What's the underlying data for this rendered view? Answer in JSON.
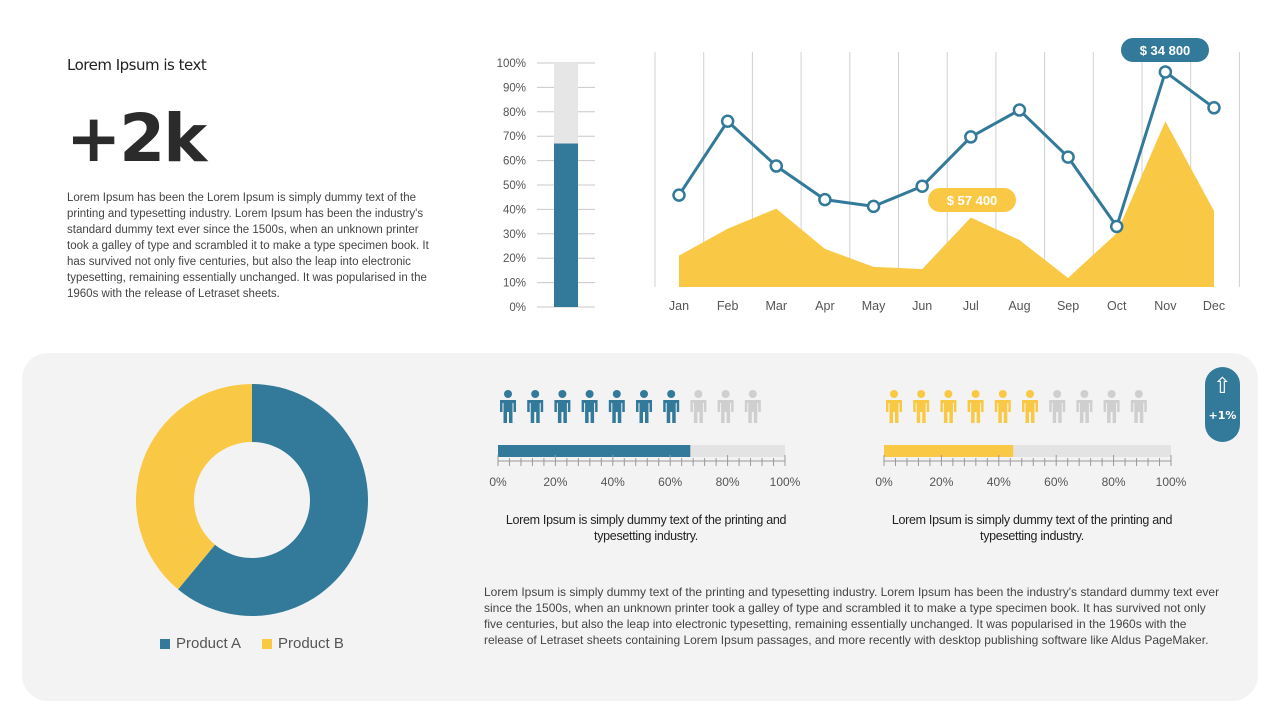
{
  "colors": {
    "blue": "#337a9a",
    "yellow": "#f9c945",
    "gray": "#e3e3e3",
    "person_gray": "#cfcfcf"
  },
  "header": {
    "title": "Lorem Ipsum is text",
    "big_number": "+2k",
    "paragraph": "Lorem Ipsum has been the Lorem Ipsum is simply dummy text of the printing and typesetting industry. Lorem Ipsum has been the industry's standard dummy text ever since the 1500s, when an unknown printer took a galley of type and scrambled it to make a type specimen book. It has survived not only five centuries, but also the leap into electronic typesetting, remaining essentially unchanged. It was popularised in the 1960s with the release of Letraset sheets."
  },
  "chart_data": [
    {
      "type": "bar",
      "name": "gauge",
      "ticks": [
        "0%",
        "10%",
        "20%",
        "30%",
        "40%",
        "50%",
        "60%",
        "70%",
        "80%",
        "90%",
        "100%"
      ],
      "value": 67,
      "ylim": [
        0,
        100
      ]
    },
    {
      "type": "line",
      "name": "monthly",
      "categories": [
        "Jan",
        "Feb",
        "Mar",
        "Apr",
        "May",
        "Jun",
        "Jul",
        "Aug",
        "Sep",
        "Oct",
        "Nov",
        "Dec"
      ],
      "series": [
        {
          "name": "line",
          "type": "line",
          "values": [
            41,
            74,
            54,
            39,
            36,
            45,
            67,
            79,
            58,
            27,
            96,
            80
          ]
        },
        {
          "name": "area",
          "type": "area",
          "values": [
            14,
            26,
            35,
            17,
            9,
            8,
            31,
            21,
            4,
            24,
            74,
            34
          ]
        }
      ],
      "ylim": [
        0,
        100
      ],
      "annotations": [
        {
          "text": "$ 57 400",
          "month": "Jul",
          "color": "yellow"
        },
        {
          "text": "$ 34 800",
          "month": "Nov",
          "color": "blue"
        }
      ]
    },
    {
      "type": "pie",
      "name": "donut",
      "labels": [
        "Product A",
        "Product B"
      ],
      "values": [
        61,
        39
      ]
    },
    {
      "type": "bar",
      "name": "progress-left",
      "value": 67,
      "people_filled": 7,
      "people_total": 10,
      "ticks": [
        "0%",
        "20%",
        "40%",
        "60%",
        "80%",
        "100%"
      ]
    },
    {
      "type": "bar",
      "name": "progress-right",
      "value": 45,
      "people_filled": 6,
      "people_total": 10,
      "ticks": [
        "0%",
        "20%",
        "40%",
        "60%",
        "80%",
        "100%"
      ]
    }
  ],
  "captions": {
    "left": "Lorem Ipsum is simply dummy text of the printing and typesetting industry.",
    "right": "Lorem Ipsum is simply dummy text of the printing and typesetting industry."
  },
  "badge": {
    "icon": "up-arrow-icon",
    "arrow": "⇧",
    "value": "+1%"
  },
  "legend": {
    "a": "Product A",
    "b": "Product B"
  },
  "paragraph2": "Lorem Ipsum is simply dummy text of the printing and typesetting industry. Lorem Ipsum has been the industry's standard dummy text ever since the 1500s, when an unknown printer took a galley of type and scrambled it to make a type specimen book. It has survived not only five centuries, but also the leap into electronic typesetting, remaining essentially unchanged. It was popularised in the 1960s with the release of Letraset sheets containing Lorem Ipsum passages, and more recently with desktop publishing software like Aldus PageMaker."
}
